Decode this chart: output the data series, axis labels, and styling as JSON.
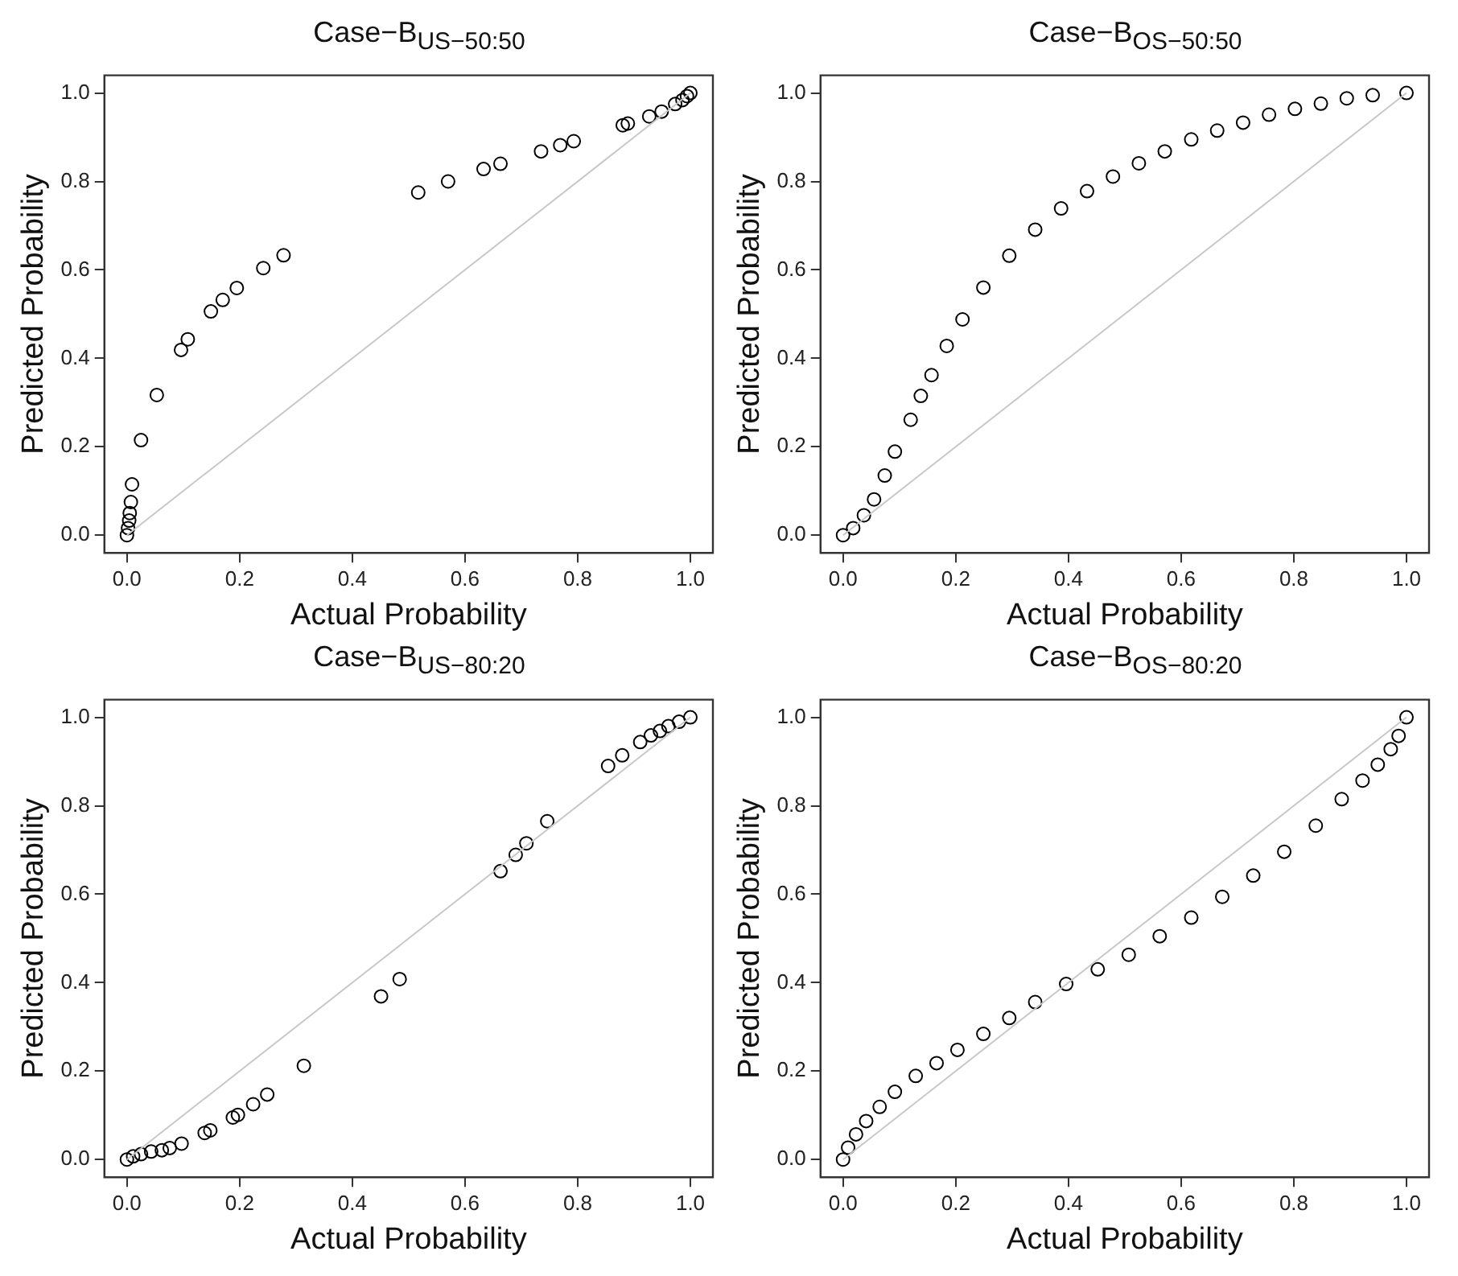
{
  "chart_data": [
    {
      "type": "scatter",
      "title": "Case−B$_{US−50:50}$",
      "xlabel": "Actual Probability",
      "ylabel": "Predicted Probability",
      "xlim": [
        -0.04,
        1.04
      ],
      "ylim": [
        -0.04,
        1.04
      ],
      "xticks": [
        {
          "value": 0,
          "label": "0.0"
        },
        {
          "value": 0.2,
          "label": "0.2"
        },
        {
          "value": 0.4,
          "label": "0.4"
        },
        {
          "value": 0.6,
          "label": "0.6"
        },
        {
          "value": 0.8,
          "label": "0.8"
        },
        {
          "value": 1,
          "label": "1.0"
        }
      ],
      "yticks": [
        {
          "value": 0,
          "label": "0.0"
        },
        {
          "value": 0.2,
          "label": "0.2"
        },
        {
          "value": 0.4,
          "label": "0.4"
        },
        {
          "value": 0.6,
          "label": "0.6"
        },
        {
          "value": 0.8,
          "label": "0.8"
        },
        {
          "value": 1,
          "label": "1.0"
        }
      ],
      "series": [
        {
          "type": "line",
          "color": "#c8c8c8",
          "line_style": "solid",
          "marker": "none",
          "x": [
            0,
            1
          ],
          "values": [
            0,
            1
          ]
        },
        {
          "marker": "circle",
          "color": "#000000",
          "x": [
            0,
            0.002,
            0.004,
            0.005,
            0.007,
            0.009,
            0.025,
            0.053,
            0.096,
            0.108,
            0.149,
            0.17,
            0.195,
            0.242,
            0.278,
            0.517,
            0.57,
            0.633,
            0.663,
            0.735,
            0.769,
            0.793,
            0.88,
            0.889,
            0.927,
            0.949,
            0.973,
            0.986,
            0.994,
            1
          ],
          "values": [
            0,
            0.016,
            0.033,
            0.05,
            0.075,
            0.115,
            0.215,
            0.317,
            0.419,
            0.443,
            0.506,
            0.532,
            0.559,
            0.604,
            0.633,
            0.775,
            0.8,
            0.828,
            0.84,
            0.868,
            0.882,
            0.891,
            0.927,
            0.931,
            0.947,
            0.958,
            0.975,
            0.984,
            0.993,
            1
          ]
        }
      ]
    },
    {
      "type": "scatter",
      "title": "Case−B$_{OS−50:50}$",
      "xlabel": "Actual Probability",
      "ylabel": "Predicted Probability",
      "xlim": [
        -0.04,
        1.04
      ],
      "ylim": [
        -0.04,
        1.04
      ],
      "xticks": [
        {
          "value": 0,
          "label": "0.0"
        },
        {
          "value": 0.2,
          "label": "0.2"
        },
        {
          "value": 0.4,
          "label": "0.4"
        },
        {
          "value": 0.6,
          "label": "0.6"
        },
        {
          "value": 0.8,
          "label": "0.8"
        },
        {
          "value": 1,
          "label": "1.0"
        }
      ],
      "yticks": [
        {
          "value": 0,
          "label": "0.0"
        },
        {
          "value": 0.2,
          "label": "0.2"
        },
        {
          "value": 0.4,
          "label": "0.4"
        },
        {
          "value": 0.6,
          "label": "0.6"
        },
        {
          "value": 0.8,
          "label": "0.8"
        },
        {
          "value": 1,
          "label": "1.0"
        }
      ],
      "series": [
        {
          "type": "line",
          "color": "#c8c8c8",
          "line_style": "solid",
          "marker": "none",
          "x": [
            0,
            1
          ],
          "values": [
            0,
            1
          ]
        },
        {
          "marker": "circle",
          "color": "#000000",
          "x": [
            0,
            0.018,
            0.037,
            0.055,
            0.074,
            0.092,
            0.12,
            0.138,
            0.157,
            0.184,
            0.212,
            0.249,
            0.295,
            0.341,
            0.387,
            0.433,
            0.479,
            0.525,
            0.571,
            0.618,
            0.664,
            0.71,
            0.756,
            0.802,
            0.848,
            0.894,
            0.94,
            1
          ],
          "values": [
            0,
            0.016,
            0.045,
            0.081,
            0.135,
            0.189,
            0.261,
            0.315,
            0.362,
            0.428,
            0.488,
            0.56,
            0.632,
            0.691,
            0.739,
            0.778,
            0.811,
            0.841,
            0.868,
            0.895,
            0.915,
            0.933,
            0.951,
            0.964,
            0.976,
            0.988,
            0.995,
            1
          ]
        }
      ]
    },
    {
      "type": "scatter",
      "title": "Case−B$_{US−80:20}$",
      "xlabel": "Actual Probability",
      "ylabel": "Predicted Probability",
      "xlim": [
        -0.04,
        1.04
      ],
      "ylim": [
        -0.04,
        1.04
      ],
      "xticks": [
        {
          "value": 0,
          "label": "0.0"
        },
        {
          "value": 0.2,
          "label": "0.2"
        },
        {
          "value": 0.4,
          "label": "0.4"
        },
        {
          "value": 0.6,
          "label": "0.6"
        },
        {
          "value": 0.8,
          "label": "0.8"
        },
        {
          "value": 1,
          "label": "1.0"
        }
      ],
      "yticks": [
        {
          "value": 0,
          "label": "0.0"
        },
        {
          "value": 0.2,
          "label": "0.2"
        },
        {
          "value": 0.4,
          "label": "0.4"
        },
        {
          "value": 0.6,
          "label": "0.6"
        },
        {
          "value": 0.8,
          "label": "0.8"
        },
        {
          "value": 1,
          "label": "1.0"
        }
      ],
      "series": [
        {
          "type": "line",
          "color": "#c8c8c8",
          "line_style": "solid",
          "marker": "none",
          "x": [
            0,
            1
          ],
          "values": [
            0,
            1
          ]
        },
        {
          "marker": "circle",
          "color": "#000000",
          "x": [
            0,
            0.011,
            0.025,
            0.043,
            0.062,
            0.076,
            0.097,
            0.138,
            0.148,
            0.188,
            0.197,
            0.224,
            0.249,
            0.314,
            0.451,
            0.484,
            0.663,
            0.69,
            0.709,
            0.746,
            0.854,
            0.879,
            0.911,
            0.93,
            0.946,
            0.961,
            0.98,
            1
          ],
          "values": [
            0,
            0.007,
            0.012,
            0.018,
            0.021,
            0.026,
            0.036,
            0.06,
            0.066,
            0.095,
            0.101,
            0.125,
            0.147,
            0.212,
            0.369,
            0.408,
            0.652,
            0.689,
            0.715,
            0.765,
            0.89,
            0.914,
            0.944,
            0.959,
            0.969,
            0.98,
            0.99,
            1
          ]
        }
      ]
    },
    {
      "type": "scatter",
      "title": "Case−B$_{OS−80:20}$",
      "xlabel": "Actual Probability",
      "ylabel": "Predicted Probability",
      "xlim": [
        -0.04,
        1.04
      ],
      "ylim": [
        -0.04,
        1.04
      ],
      "xticks": [
        {
          "value": 0,
          "label": "0.0"
        },
        {
          "value": 0.2,
          "label": "0.2"
        },
        {
          "value": 0.4,
          "label": "0.4"
        },
        {
          "value": 0.6,
          "label": "0.6"
        },
        {
          "value": 0.8,
          "label": "0.8"
        },
        {
          "value": 1,
          "label": "1.0"
        }
      ],
      "yticks": [
        {
          "value": 0,
          "label": "0.0"
        },
        {
          "value": 0.2,
          "label": "0.2"
        },
        {
          "value": 0.4,
          "label": "0.4"
        },
        {
          "value": 0.6,
          "label": "0.6"
        },
        {
          "value": 0.8,
          "label": "0.8"
        },
        {
          "value": 1,
          "label": "1.0"
        }
      ],
      "series": [
        {
          "type": "line",
          "color": "#c8c8c8",
          "line_style": "solid",
          "marker": "none",
          "x": [
            0,
            1
          ],
          "values": [
            0,
            1
          ]
        },
        {
          "marker": "circle",
          "color": "#000000",
          "x": [
            0,
            0.009,
            0.023,
            0.041,
            0.065,
            0.092,
            0.129,
            0.166,
            0.203,
            0.249,
            0.295,
            0.341,
            0.396,
            0.452,
            0.507,
            0.562,
            0.618,
            0.673,
            0.728,
            0.783,
            0.839,
            0.885,
            0.922,
            0.949,
            0.972,
            0.986,
            1
          ],
          "values": [
            0,
            0.027,
            0.057,
            0.087,
            0.119,
            0.153,
            0.189,
            0.218,
            0.248,
            0.284,
            0.32,
            0.356,
            0.397,
            0.43,
            0.463,
            0.505,
            0.547,
            0.594,
            0.642,
            0.696,
            0.755,
            0.815,
            0.857,
            0.893,
            0.928,
            0.958,
            1
          ]
        }
      ]
    }
  ]
}
